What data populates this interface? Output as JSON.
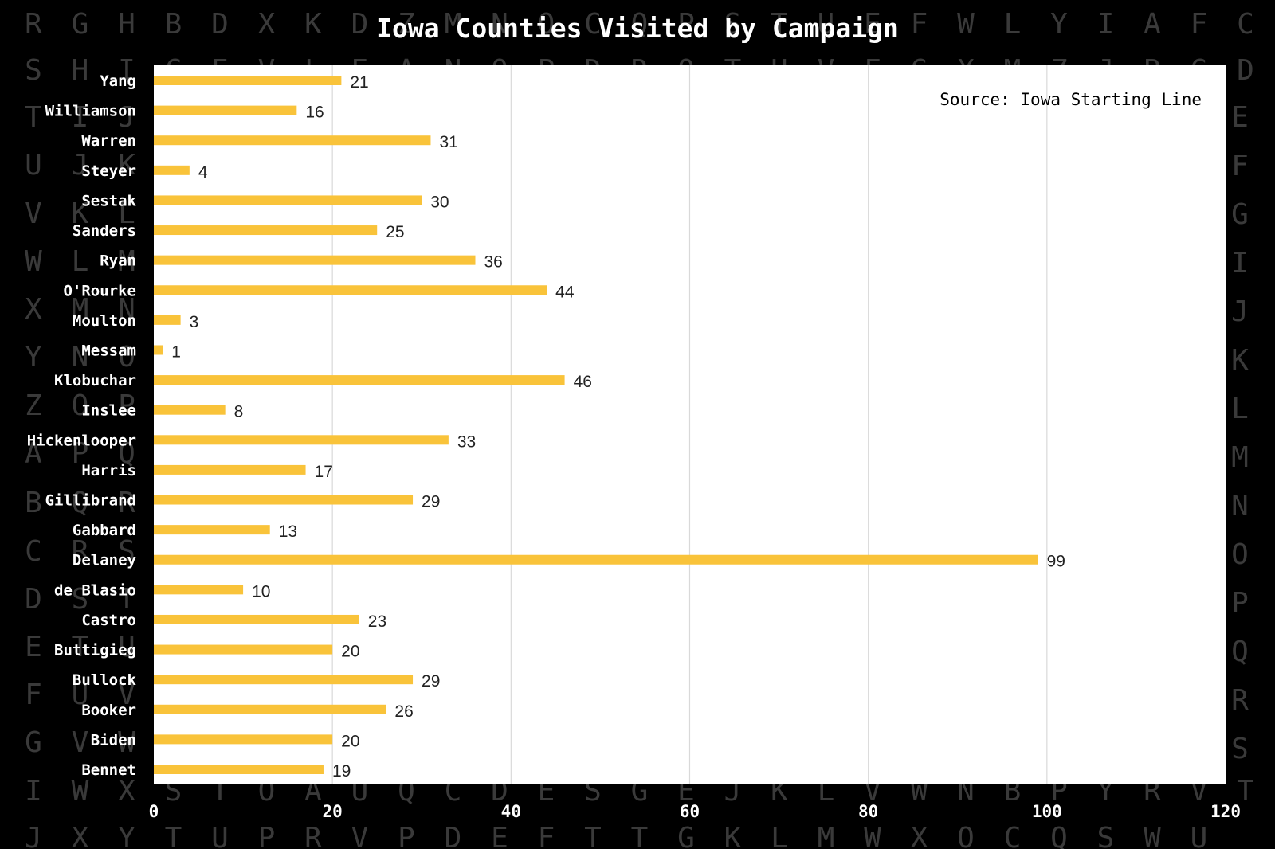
{
  "background_letters": [
    "RGHBDXKDZMNOCQPSTUEFWLYIAFC",
    "SHICEVLEANOPDRQTUVFGXMZJBGD",
    "TIJ",
    "UJK",
    "VKL",
    "WLM",
    "XMN",
    "YNO",
    "ZOP",
    "APQ",
    "BQR",
    "CRS",
    "DST",
    "ETU",
    "FUV",
    "GVW",
    "IWXSTOAUQCDESGEJKLVWNBPYRVT",
    "JXYTUPRVPDEFTTGKLMWXOCQSWU"
  ],
  "background_right_letters": [
    "E",
    "F",
    "G",
    "I",
    "J",
    "K",
    "L",
    "M",
    "N",
    "O",
    "P",
    "Q",
    "R",
    "S"
  ],
  "colors": {
    "background": "#000000",
    "plot_area": "#ffffff",
    "bar": "#f9c33a",
    "gridline": "#d9d9d9",
    "title_text": "#ffffff",
    "label_text": "#000000",
    "letters": "#3a3a3a"
  },
  "chart_data": {
    "type": "bar",
    "orientation": "horizontal",
    "title": "Iowa Counties Visited by Campaign",
    "annotation": "Source: Iowa Starting Line",
    "categories": [
      "Yang",
      "Williamson",
      "Warren",
      "Steyer",
      "Sestak",
      "Sanders",
      "Ryan",
      "O'Rourke",
      "Moulton",
      "Messam",
      "Klobuchar",
      "Inslee",
      "Hickenlooper",
      "Harris",
      "Gillibrand",
      "Gabbard",
      "Delaney",
      "de Blasio",
      "Castro",
      "Buttigieg",
      "Bullock",
      "Booker",
      "Biden",
      "Bennet"
    ],
    "values": [
      21,
      16,
      31,
      4,
      30,
      25,
      36,
      44,
      3,
      1,
      46,
      8,
      33,
      17,
      29,
      13,
      99,
      10,
      23,
      20,
      29,
      26,
      20,
      19
    ],
    "xlim": [
      0,
      120
    ],
    "xticks": [
      0,
      20,
      40,
      60,
      80,
      100,
      120
    ],
    "xlabel": "",
    "ylabel": "",
    "grid": "vertical",
    "legend": "none",
    "data_labels": true
  }
}
